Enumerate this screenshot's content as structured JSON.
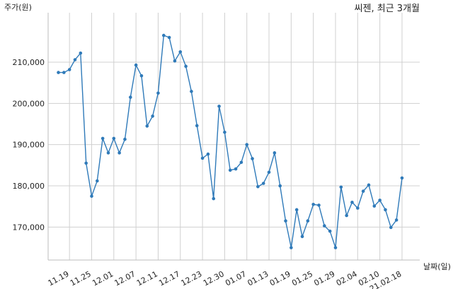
{
  "chart_data": {
    "type": "line",
    "title": "씨젠, 최근 3개월",
    "ylabel": "주가(원)",
    "xlabel": "날짜(일)",
    "ylim": [
      162000,
      222000
    ],
    "yticks": [
      170000,
      180000,
      190000,
      200000,
      210000
    ],
    "ytick_labels": [
      "170,000",
      "180,000",
      "190,000",
      "200,000",
      "210,000"
    ],
    "xtick_labels": [
      "11.19",
      "11.25",
      "12.01",
      "12.07",
      "12.11",
      "12.17",
      "12.23",
      "12.30",
      "01.07",
      "01.13",
      "01.19",
      "01.25",
      "01.29",
      "02.04",
      "02.10",
      "21.02.18"
    ],
    "xtick_index": [
      2,
      6,
      10,
      14,
      18,
      22,
      26,
      30,
      34,
      38,
      42,
      46,
      50,
      54,
      58,
      62
    ],
    "grid": true,
    "color": "#2f7ab9",
    "series": [
      {
        "values": [
          207500,
          207500,
          208200,
          210600,
          212200,
          185500,
          177500,
          181200,
          191500,
          188000,
          191500,
          188000,
          191300,
          201500,
          209300,
          206700,
          194500,
          196900,
          202500,
          216500,
          216000,
          210300,
          212500,
          209000,
          202900,
          194600,
          186700,
          187700,
          176900,
          199300,
          193000,
          183800,
          184100,
          185700,
          190000,
          186600,
          179800,
          180600,
          183300,
          188000,
          180000,
          171500,
          165000,
          174200,
          167700,
          171500,
          175500,
          175300,
          170300,
          169000,
          165000,
          179700,
          172800,
          176000,
          174600,
          178700,
          180200,
          175100,
          176500,
          174200,
          169900,
          171700,
          181900
        ]
      }
    ]
  }
}
